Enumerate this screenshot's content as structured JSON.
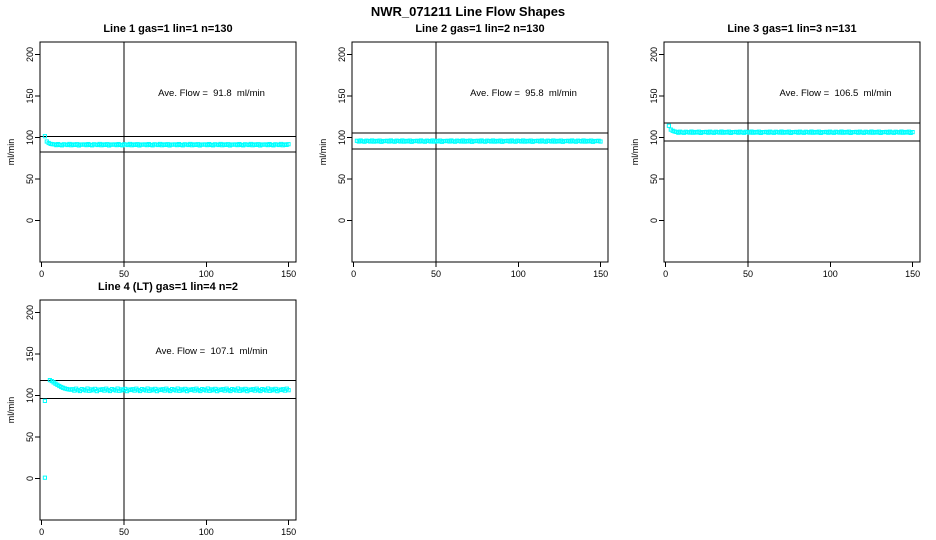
{
  "title": "NWR_071211  Line Flow Shapes",
  "accent_color": "#00FFFF",
  "axis_color": "#000000",
  "chart_data": [
    {
      "type": "scatter",
      "title": "Line 1 gas=1 lin=1 n=130",
      "annotation": "Ave. Flow =  91.8  ml/min",
      "ave_flow_ml_min": 91.8,
      "ylabel": "ml/min",
      "xticks": [
        0,
        50,
        100,
        150
      ],
      "yticks": [
        0,
        50,
        100,
        150,
        200
      ],
      "xlim": [
        -1,
        154.5
      ],
      "ylim": [
        -50,
        215
      ],
      "grid": false,
      "legend": "none",
      "vline_x": 50,
      "hlines": [
        101.0,
        82.6
      ],
      "marker": {
        "shape": "open-square",
        "color": "#00FFFF",
        "size": 3.2
      },
      "series": {
        "name": "line1-flow",
        "x_start": 2,
        "x_step": 1.147,
        "y": [
          101.5,
          95.2,
          93.4,
          92.3,
          91.9,
          91.7,
          90.8,
          92.0,
          91.1,
          90.6,
          91.8,
          91.4,
          90.9,
          92.1,
          90.7,
          91.6,
          91.0,
          91.9,
          90.5,
          91.5,
          91.3,
          91.7,
          90.8,
          92.0,
          91.1,
          90.6,
          91.8,
          91.4,
          90.9,
          92.1,
          90.7,
          91.6,
          91.0,
          91.9,
          90.5,
          91.5,
          91.3,
          91.7,
          90.8,
          92.0,
          91.1,
          90.6,
          91.8,
          91.4,
          90.9,
          92.1,
          90.7,
          91.6,
          91.0,
          91.9,
          90.5,
          91.5,
          91.3,
          91.7,
          90.8,
          92.0,
          91.1,
          90.6,
          91.8,
          91.4,
          90.9,
          92.1,
          90.7,
          91.6,
          91.0,
          91.9,
          90.5,
          91.5,
          91.3,
          91.7,
          90.8,
          92.0,
          91.1,
          90.6,
          91.8,
          91.4,
          90.9,
          92.1,
          90.7,
          91.6,
          91.0,
          91.9,
          90.5,
          91.5,
          91.3,
          91.7,
          90.8,
          92.0,
          91.1,
          90.6,
          91.8,
          91.4,
          90.9,
          92.1,
          90.7,
          91.6,
          91.0,
          91.9,
          90.5,
          91.5,
          91.3,
          91.7,
          90.8,
          92.0,
          91.1,
          90.6,
          91.8,
          91.4,
          90.9,
          92.1,
          90.7,
          91.6,
          91.0,
          91.9,
          90.5,
          91.5,
          91.3,
          91.7,
          90.8,
          92.0,
          91.1,
          90.6,
          91.8,
          91.4,
          90.9,
          92.1,
          90.7,
          91.6,
          91.0,
          91.9
        ]
      },
      "extra_points": []
    },
    {
      "type": "scatter",
      "title": "Line 2 gas=1 lin=2 n=130",
      "annotation": "Ave. Flow =  95.8  ml/min",
      "ave_flow_ml_min": 95.8,
      "ylabel": "ml/min",
      "xticks": [
        0,
        50,
        100,
        150
      ],
      "yticks": [
        0,
        50,
        100,
        150,
        200
      ],
      "xlim": [
        -1,
        154.5
      ],
      "ylim": [
        -50,
        215
      ],
      "grid": false,
      "legend": "none",
      "vline_x": 50,
      "hlines": [
        105.4,
        86.2
      ],
      "marker": {
        "shape": "open-square",
        "color": "#00FFFF",
        "size": 3.2
      },
      "series": {
        "name": "line2-flow",
        "x_start": 2,
        "x_step": 1.147,
        "y": [
          96.0,
          95.1,
          96.3,
          95.4,
          94.9,
          96.1,
          95.7,
          95.2,
          96.4,
          95.0,
          95.9,
          95.3,
          96.2,
          94.8,
          95.8,
          95.6,
          96.0,
          95.1,
          96.3,
          95.4,
          94.9,
          96.1,
          95.7,
          95.2,
          96.4,
          95.0,
          95.9,
          95.3,
          96.2,
          94.8,
          95.8,
          95.6,
          96.0,
          95.1,
          96.3,
          95.4,
          94.9,
          96.1,
          95.7,
          95.2,
          96.4,
          95.0,
          95.9,
          95.3,
          96.2,
          94.8,
          95.8,
          95.6,
          96.0,
          95.1,
          96.3,
          95.4,
          94.9,
          96.1,
          95.7,
          95.2,
          96.4,
          95.0,
          95.9,
          95.3,
          96.2,
          94.8,
          95.8,
          95.6,
          96.0,
          95.1,
          96.3,
          95.4,
          94.9,
          96.1,
          95.7,
          95.2,
          96.4,
          95.0,
          95.9,
          95.3,
          96.2,
          94.8,
          95.8,
          95.6,
          96.0,
          95.1,
          96.3,
          95.4,
          94.9,
          96.1,
          95.7,
          95.2,
          96.4,
          95.0,
          95.9,
          95.3,
          96.2,
          94.8,
          95.8,
          95.6,
          96.0,
          95.1,
          96.3,
          95.4,
          94.9,
          96.1,
          95.7,
          95.2,
          96.4,
          95.0,
          95.9,
          95.3,
          96.2,
          94.8,
          95.8,
          95.6,
          96.0,
          95.1,
          96.3,
          95.4,
          94.9,
          96.1,
          95.7,
          95.2,
          96.4,
          95.0,
          95.9,
          95.3,
          96.2,
          94.8,
          95.8,
          95.6,
          96.0,
          95.1
        ]
      },
      "extra_points": []
    },
    {
      "type": "scatter",
      "title": "Line 3 gas=1 lin=3 n=131",
      "annotation": "Ave. Flow =  106.5  ml/min",
      "ave_flow_ml_min": 106.5,
      "ylabel": "ml/min",
      "xticks": [
        0,
        50,
        100,
        150
      ],
      "yticks": [
        0,
        50,
        100,
        150,
        200
      ],
      "xlim": [
        -1,
        154.5
      ],
      "ylim": [
        -50,
        215
      ],
      "grid": false,
      "legend": "none",
      "vline_x": 50,
      "hlines": [
        117.2,
        95.9
      ],
      "marker": {
        "shape": "open-square",
        "color": "#00FFFF",
        "size": 3.2
      },
      "series": {
        "name": "line3-flow",
        "x_start": 2,
        "x_step": 1.1385,
        "y": [
          114.0,
          109.5,
          108.0,
          107.2,
          106.7,
          105.8,
          107.0,
          106.1,
          105.6,
          106.8,
          106.4,
          105.9,
          107.1,
          105.7,
          106.6,
          106.0,
          106.9,
          105.5,
          106.5,
          106.3,
          106.7,
          105.8,
          107.0,
          106.1,
          105.6,
          106.8,
          106.4,
          105.9,
          107.1,
          105.7,
          106.6,
          106.0,
          106.9,
          105.5,
          106.5,
          106.3,
          106.7,
          105.8,
          107.0,
          106.1,
          105.6,
          106.8,
          106.4,
          105.9,
          107.1,
          105.7,
          106.6,
          106.0,
          106.9,
          105.5,
          106.5,
          106.3,
          106.7,
          105.8,
          107.0,
          106.1,
          105.6,
          106.8,
          106.4,
          105.9,
          107.1,
          105.7,
          106.6,
          106.0,
          106.9,
          105.5,
          106.5,
          106.3,
          106.7,
          105.8,
          107.0,
          106.1,
          105.6,
          106.8,
          106.4,
          105.9,
          107.1,
          105.7,
          106.6,
          106.0,
          106.9,
          105.5,
          106.5,
          106.3,
          106.7,
          105.8,
          107.0,
          106.1,
          105.6,
          106.8,
          106.4,
          105.9,
          107.1,
          105.7,
          106.6,
          106.0,
          106.9,
          105.5,
          106.5,
          106.3,
          106.7,
          105.8,
          107.0,
          106.1,
          105.6,
          106.8,
          106.4,
          105.9,
          107.1,
          105.7,
          106.6,
          106.0,
          106.9,
          105.5,
          106.5,
          106.3,
          106.7,
          105.8,
          107.0,
          106.1,
          105.6,
          106.8,
          106.4,
          105.9,
          107.1,
          105.7,
          106.6,
          106.0,
          106.9,
          105.5,
          106.5
        ]
      },
      "extra_points": []
    },
    {
      "type": "scatter",
      "title": "Line 4 (LT) gas=1 lin=4 n=2",
      "annotation": "Ave. Flow =  107.1  ml/min",
      "ave_flow_ml_min": 107.1,
      "ylabel": "ml/min",
      "xticks": [
        0,
        50,
        100,
        150
      ],
      "yticks": [
        0,
        50,
        100,
        150,
        200
      ],
      "xlim": [
        -1,
        154.5
      ],
      "ylim": [
        -50,
        215
      ],
      "grid": false,
      "legend": "none",
      "vline_x": 50,
      "hlines": [
        117.8,
        96.4
      ],
      "marker": {
        "shape": "open-square",
        "color": "#00FFFF",
        "size": 3.2
      },
      "series": {
        "name": "line4-flow",
        "x_start": 5,
        "x_step": 1.142,
        "y": [
          118.5,
          117.3,
          115.8,
          114.2,
          112.8,
          111.4,
          110.2,
          109.2,
          108.4,
          107.8,
          107.3,
          107.0,
          107.5,
          105.9,
          108.1,
          106.4,
          105.4,
          107.7,
          106.9,
          106.0,
          108.3,
          105.6,
          107.3,
          106.2,
          107.9,
          105.3,
          107.1,
          106.6,
          107.5,
          105.9,
          108.1,
          106.4,
          105.4,
          107.7,
          106.9,
          106.0,
          108.3,
          105.6,
          107.3,
          106.2,
          107.9,
          105.3,
          107.1,
          106.6,
          107.5,
          105.9,
          108.1,
          106.4,
          105.4,
          107.7,
          106.9,
          106.0,
          108.3,
          105.6,
          107.3,
          106.2,
          107.9,
          105.3,
          107.1,
          106.6,
          107.5,
          105.9,
          108.1,
          106.4,
          105.4,
          107.7,
          106.9,
          106.0,
          108.3,
          105.6,
          107.3,
          106.2,
          107.9,
          105.3,
          107.1,
          106.6,
          107.5,
          105.9,
          108.1,
          106.4,
          105.4,
          107.7,
          106.9,
          106.0,
          108.3,
          105.6,
          107.3,
          106.2,
          107.9,
          105.3,
          107.1,
          106.6,
          107.5,
          105.9,
          108.1,
          106.4,
          105.4,
          107.7,
          106.9,
          106.0,
          108.3,
          105.6,
          107.3,
          106.2,
          107.9,
          105.3,
          107.1,
          106.6,
          107.5,
          105.9,
          108.1,
          106.4,
          105.4,
          107.7,
          106.9,
          106.0,
          108.3,
          105.6,
          107.3,
          106.2,
          107.9,
          105.3,
          107.1,
          106.6,
          107.5,
          105.9,
          108.1,
          106.4
        ]
      },
      "extra_points": [
        [
          2,
          1.0
        ],
        [
          2,
          93.5
        ]
      ]
    }
  ]
}
